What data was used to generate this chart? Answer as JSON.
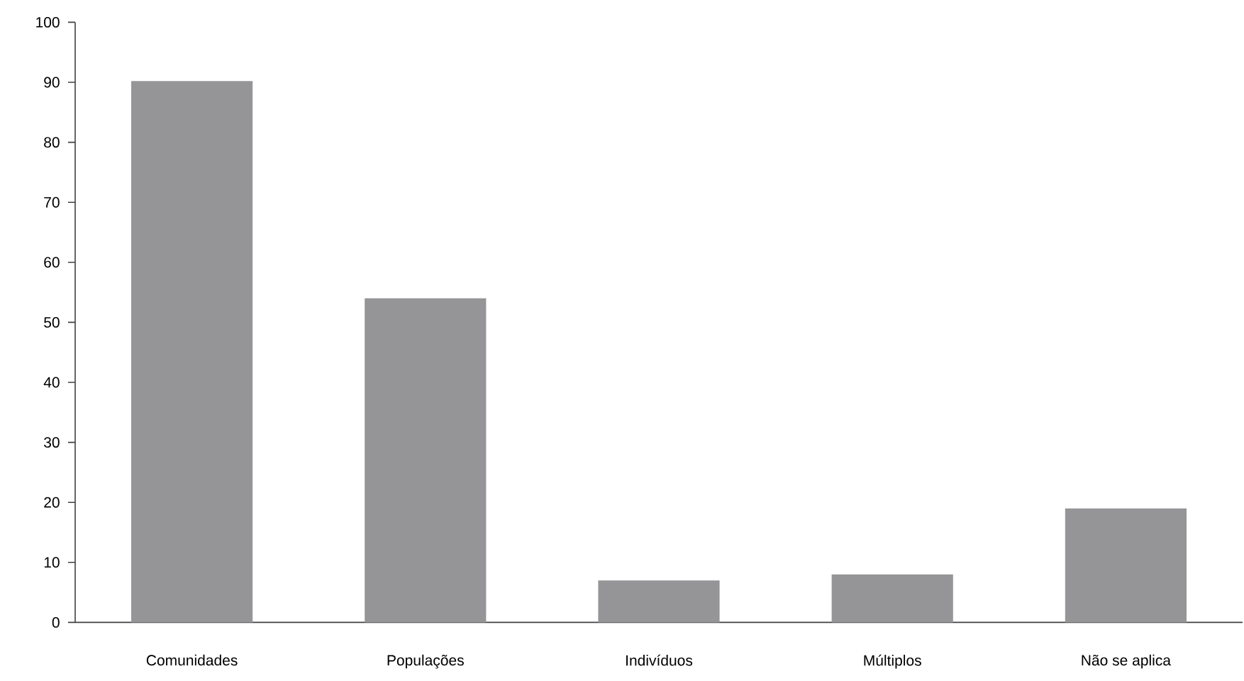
{
  "chart_data": {
    "type": "bar",
    "categories": [
      "Comunidades",
      "Populações",
      "Indivíduos",
      "Múltiplos",
      "Não se aplica"
    ],
    "values": [
      90.2,
      54,
      7,
      8,
      19
    ],
    "color": "#959598",
    "ylim": [
      0,
      100
    ],
    "yticks": [
      0,
      10,
      20,
      30,
      40,
      50,
      60,
      70,
      80,
      90,
      100
    ],
    "grid": false
  }
}
